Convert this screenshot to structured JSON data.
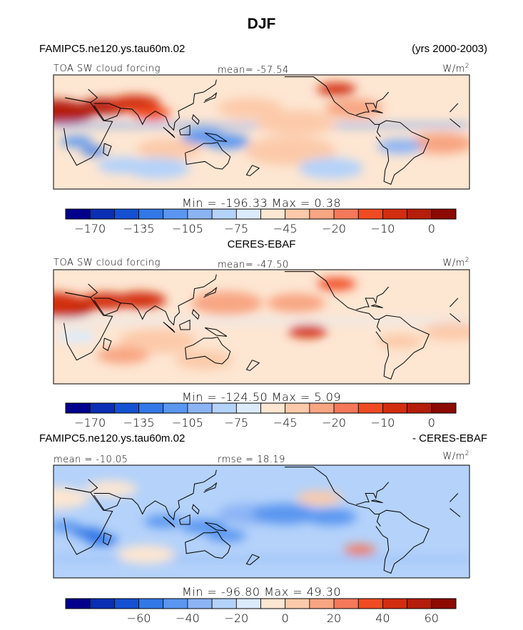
{
  "figure": {
    "title": "DJF",
    "model_case": "FAMIPC5.ne120.ys.tau60m.02",
    "years": "(yrs 2000-2003)",
    "diff_case": "FAMIPC5.ne120.ys.tau60m.02",
    "diff_suffix": "- CERES-EBAF"
  },
  "palettes": {
    "abs": [
      "#00008c",
      "#0a2fb4",
      "#1450d2",
      "#3278e6",
      "#5a96f0",
      "#8cb4f5",
      "#b4d2fa",
      "#dcebfc",
      "#fde6d2",
      "#fccaaa",
      "#f8a582",
      "#f5785a",
      "#f04b23",
      "#d22d0f",
      "#b41e0a",
      "#8c0a00"
    ],
    "diff": [
      "#00008c",
      "#0a2fb4",
      "#1450d2",
      "#3278e6",
      "#5a96f0",
      "#8cb4f5",
      "#b4d2fa",
      "#dcebfc",
      "#fde6d2",
      "#fccaaa",
      "#f8a582",
      "#f5785a",
      "#f04b23",
      "#d22d0f",
      "#b41e0a",
      "#8c0a00"
    ]
  },
  "chart_data": [
    {
      "type": "heatmap",
      "panel": "model",
      "field": "TOA SW cloud forcing",
      "units": "W/m2",
      "units_label": "W/m",
      "units_sup": "2",
      "stat_label": "mean= -57.54",
      "mean": -57.54,
      "min": -196.33,
      "max": 0.38,
      "minmax_label": "Min = -196.33 Max =    0.38",
      "colorbar_ticks": [
        "-170",
        "-135",
        "-105",
        "-75",
        "-45",
        "-20",
        "-10",
        "0"
      ],
      "palette": "abs",
      "blobs": [
        {
          "lon": 10,
          "lat": 20,
          "r": 18,
          "c": 15
        },
        {
          "lon": 0,
          "lat": 22,
          "r": 22,
          "c": 14
        },
        {
          "lon": 45,
          "lat": 27,
          "r": 16,
          "c": 14
        },
        {
          "lon": 70,
          "lat": 30,
          "r": 16,
          "c": 13
        },
        {
          "lon": 85,
          "lat": 20,
          "r": 12,
          "c": 12
        },
        {
          "lon": -100,
          "lat": 25,
          "r": 18,
          "c": 10
        },
        {
          "lon": -115,
          "lat": 45,
          "r": 12,
          "c": 13
        },
        {
          "lon": 170,
          "lat": 25,
          "r": 20,
          "c": 9
        },
        {
          "lon": -150,
          "lat": 10,
          "r": 24,
          "c": 9
        },
        {
          "lon": -25,
          "lat": -12,
          "r": 20,
          "c": 10
        },
        {
          "lon": 100,
          "lat": -18,
          "r": 20,
          "c": 9
        },
        {
          "lon": -155,
          "lat": -20,
          "r": 28,
          "c": 9
        },
        {
          "lon": 60,
          "lat": -35,
          "r": 16,
          "c": 6
        },
        {
          "lon": 20,
          "lat": -10,
          "r": 10,
          "c": 4
        },
        {
          "lon": 35,
          "lat": -20,
          "r": 8,
          "c": 3
        },
        {
          "lon": 130,
          "lat": -5,
          "r": 14,
          "c": 4
        },
        {
          "lon": 150,
          "lat": -10,
          "r": 14,
          "c": 4
        },
        {
          "lon": -60,
          "lat": -15,
          "r": 14,
          "c": 5
        },
        {
          "lon": 90,
          "lat": -38,
          "r": 20,
          "c": 6
        },
        {
          "lon": -120,
          "lat": -38,
          "r": 20,
          "c": 6
        }
      ],
      "itcz": {
        "lat": 7,
        "c": 4
      }
    },
    {
      "type": "heatmap",
      "panel": "observations",
      "subtitle": "CERES-EBAF",
      "field": "TOA SW cloud forcing",
      "units": "W/m2",
      "units_label": "W/m",
      "units_sup": "2",
      "stat_label": "mean= -47.50",
      "mean": -47.5,
      "min": -124.5,
      "max": 5.09,
      "minmax_label": "Min = -124.50 Max =    5.09",
      "colorbar_ticks": [
        "-170",
        "-135",
        "-105",
        "-75",
        "-45",
        "-20",
        "-10",
        "0"
      ],
      "palette": "abs",
      "blobs": [
        {
          "lon": 10,
          "lat": 20,
          "r": 18,
          "c": 14
        },
        {
          "lon": 0,
          "lat": 25,
          "r": 20,
          "c": 13
        },
        {
          "lon": 45,
          "lat": 27,
          "r": 16,
          "c": 13
        },
        {
          "lon": 75,
          "lat": 28,
          "r": 16,
          "c": 13
        },
        {
          "lon": 150,
          "lat": 25,
          "r": 22,
          "c": 10
        },
        {
          "lon": -150,
          "lat": 25,
          "r": 18,
          "c": 10
        },
        {
          "lon": -140,
          "lat": -5,
          "r": 12,
          "c": 13
        },
        {
          "lon": -115,
          "lat": 45,
          "r": 12,
          "c": 12
        },
        {
          "lon": -15,
          "lat": -5,
          "r": 18,
          "c": 9
        },
        {
          "lon": 90,
          "lat": -15,
          "r": 24,
          "c": 9
        },
        {
          "lon": 60,
          "lat": -30,
          "r": 16,
          "c": 10
        },
        {
          "lon": -60,
          "lat": -15,
          "r": 14,
          "c": 9
        },
        {
          "lon": 130,
          "lat": -35,
          "r": 18,
          "c": 9
        },
        {
          "lon": -100,
          "lat": -30,
          "r": 20,
          "c": 8
        },
        {
          "lon": 20,
          "lat": -10,
          "r": 12,
          "c": 7
        }
      ],
      "itcz": {
        "lat": 6,
        "c": 7
      }
    },
    {
      "type": "heatmap",
      "panel": "difference",
      "field": "",
      "units": "W/m2",
      "units_label": "W/m",
      "units_sup": "2",
      "stat_label": "mean = -10.05",
      "rmse_label": "rmse =  18.19",
      "mean": -10.05,
      "rmse": 18.19,
      "min": -96.8,
      "max": 49.3,
      "minmax_label": "Min = -96.80 Max =  49.30",
      "colorbar_ticks": [
        "-60",
        "-40",
        "-20",
        "0",
        "20",
        "40",
        "60"
      ],
      "palette": "diff",
      "blobs": [
        {
          "lon": 0,
          "lat": 25,
          "r": 22,
          "c": 8
        },
        {
          "lon": 50,
          "lat": 35,
          "r": 16,
          "c": 8
        },
        {
          "lon": -130,
          "lat": 25,
          "r": 14,
          "c": 9
        },
        {
          "lon": 30,
          "lat": -12,
          "r": 10,
          "c": 3
        },
        {
          "lon": 42,
          "lat": -20,
          "r": 10,
          "c": 3
        },
        {
          "lon": 10,
          "lat": -5,
          "r": 10,
          "c": 4
        },
        {
          "lon": 95,
          "lat": 0,
          "r": 12,
          "c": 4
        },
        {
          "lon": 130,
          "lat": -5,
          "r": 14,
          "c": 4
        },
        {
          "lon": 150,
          "lat": -15,
          "r": 12,
          "c": 4
        },
        {
          "lon": 170,
          "lat": 8,
          "r": 20,
          "c": 5
        },
        {
          "lon": -160,
          "lat": 8,
          "r": 20,
          "c": 4
        },
        {
          "lon": -120,
          "lat": 5,
          "r": 16,
          "c": 4
        },
        {
          "lon": -95,
          "lat": -30,
          "r": 10,
          "c": 11
        },
        {
          "lon": -60,
          "lat": -10,
          "r": 12,
          "c": 6
        },
        {
          "lon": 80,
          "lat": -35,
          "r": 18,
          "c": 8
        },
        {
          "lon": -20,
          "lat": -25,
          "r": 16,
          "c": 6
        }
      ],
      "itcz": {
        "lat": -40,
        "c": 5
      }
    }
  ]
}
